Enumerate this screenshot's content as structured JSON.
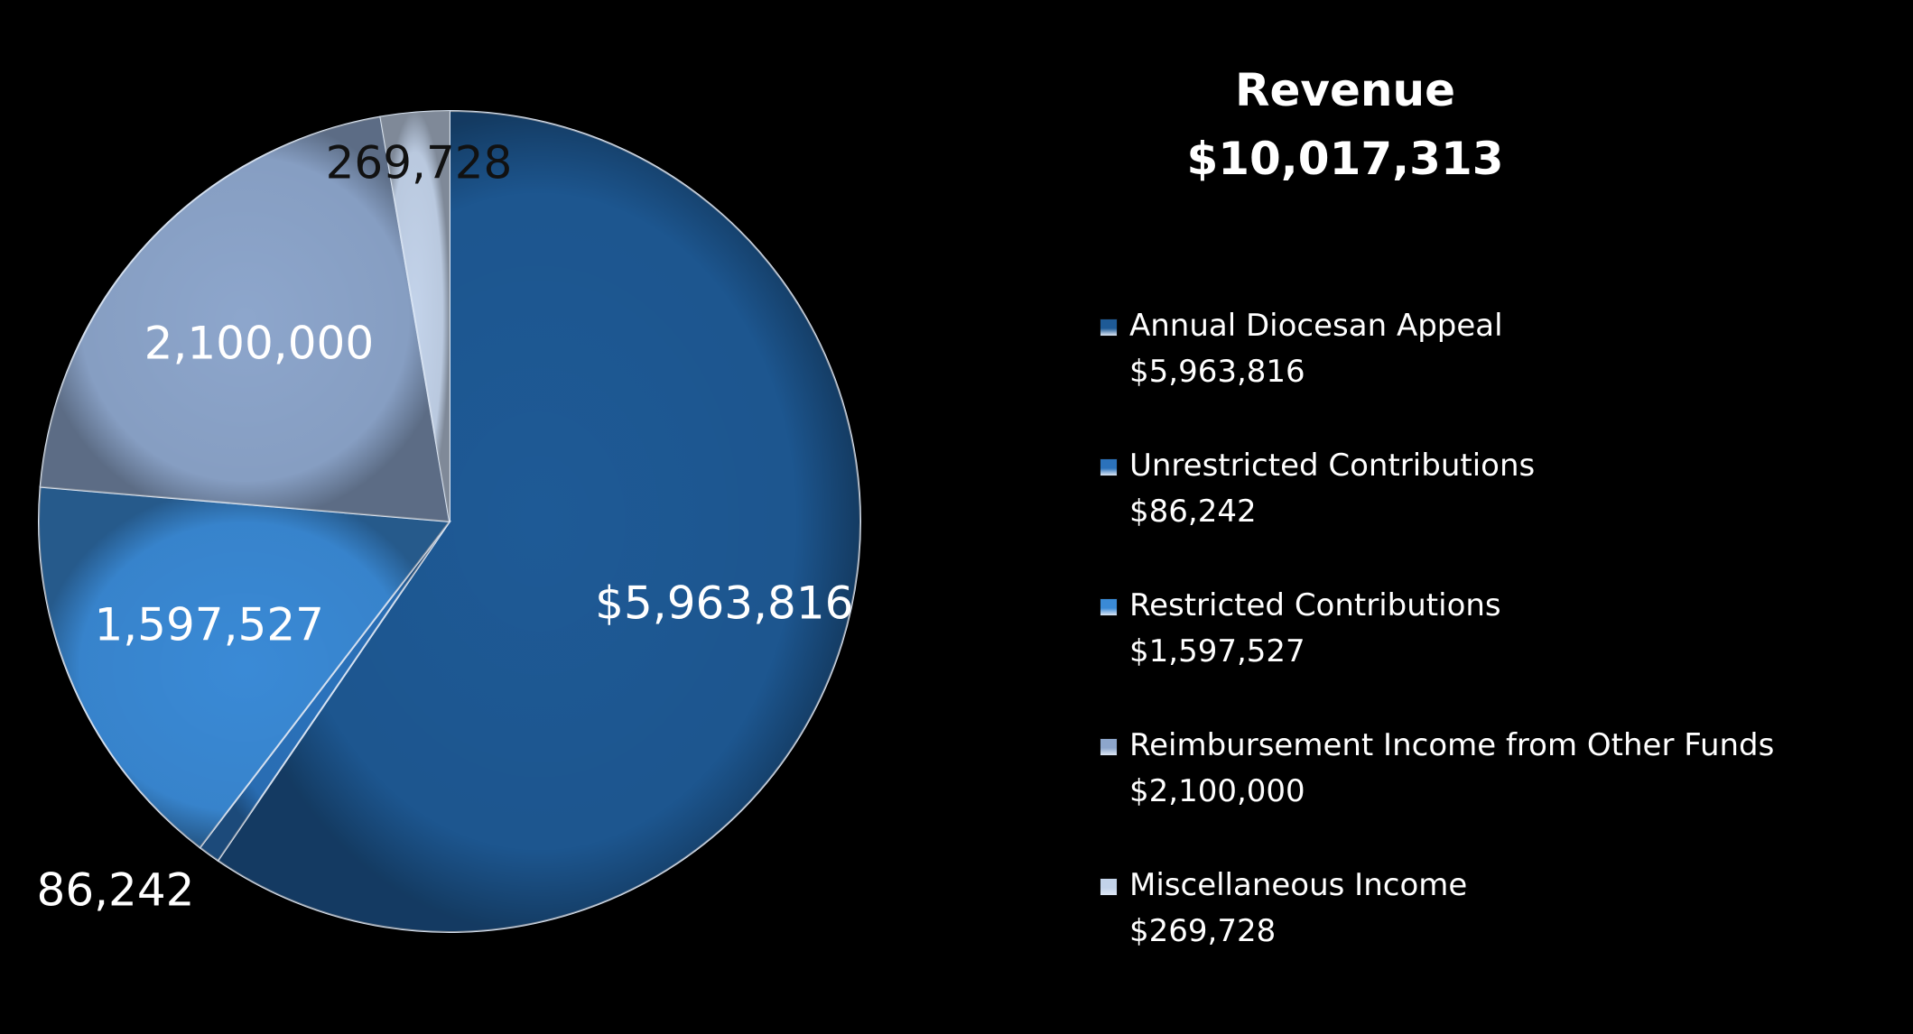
{
  "title": {
    "line1": "Revenue",
    "line2": "$10,017,313"
  },
  "chart_data": {
    "type": "pie",
    "categories": [
      "Annual Diocesan Appeal",
      "Unrestricted Contributions",
      "Restricted Contributions",
      "Reimbursement Income from Other Funds",
      "Miscellaneous Income"
    ],
    "values": [
      5963816,
      86242,
      1597527,
      2100000,
      269728
    ],
    "data_labels": [
      "$5,963,816",
      "86,242",
      "1,597,527",
      "2,100,000",
      "269,728"
    ],
    "legend_values": [
      "$5,963,816",
      "$86,242",
      "$1,597,527",
      "$2,100,000",
      "$269,728"
    ],
    "colors": [
      "#1e5a96",
      "#2b72bb",
      "#3a8ad6",
      "#8da6cc",
      "#c3d3ea"
    ],
    "start_angle": "12 o'clock",
    "direction": "clockwise",
    "legend_position": "right"
  }
}
